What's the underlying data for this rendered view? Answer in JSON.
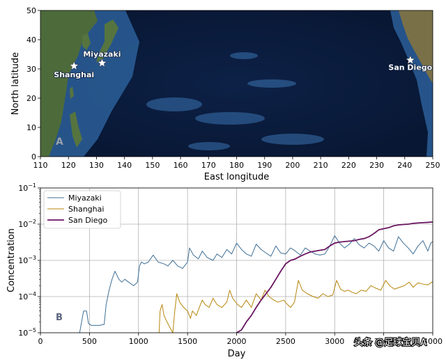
{
  "watermark": "头条 @足球宝贝A",
  "chart_data": [
    {
      "type": "map-scatter",
      "panel_label": "A",
      "xlabel": "East longitude",
      "ylabel": "North latitude",
      "xlim": [
        110,
        250
      ],
      "ylim": [
        0,
        50
      ],
      "xticks": [
        110,
        120,
        130,
        140,
        150,
        160,
        170,
        180,
        190,
        200,
        210,
        220,
        230,
        240,
        250
      ],
      "yticks": [
        0,
        10,
        20,
        30,
        40,
        50
      ],
      "points": [
        {
          "label": "Shanghai",
          "lon": 122,
          "lat": 31
        },
        {
          "label": "Miyazaki",
          "lon": 132,
          "lat": 32
        },
        {
          "label": "San Diego",
          "lon": 242,
          "lat": 33
        }
      ],
      "colors": {
        "ocean": "#0a1b3a",
        "shelf": "#2c5f99",
        "land": "#4d6b3a",
        "marker": "#ffffff"
      }
    },
    {
      "type": "line",
      "panel_label": "B",
      "xlabel": "Day",
      "ylabel": "Concentration",
      "xlim": [
        0,
        4000
      ],
      "ylim": [
        1e-05,
        0.1
      ],
      "yscale": "log",
      "xticks": [
        0,
        500,
        1000,
        1500,
        2000,
        2500,
        3000,
        3500,
        4000
      ],
      "yticks": [
        {
          "value": 1e-05,
          "label": "10",
          "exp": "−5"
        },
        {
          "value": 0.0001,
          "label": "10",
          "exp": "−4"
        },
        {
          "value": 0.001,
          "label": "10",
          "exp": "−3"
        },
        {
          "value": 0.01,
          "label": "10",
          "exp": "−2"
        },
        {
          "value": 0.1,
          "label": "10",
          "exp": "−1"
        }
      ],
      "grid": true,
      "legend_position": "top-left",
      "series": [
        {
          "name": "Miyazaki",
          "color": "#3f6f95",
          "points": [
            [
              400,
              1e-05
            ],
            [
              420,
              2e-05
            ],
            [
              440,
              4e-05
            ],
            [
              470,
              4e-05
            ],
            [
              490,
              1.8e-05
            ],
            [
              520,
              1.6e-05
            ],
            [
              600,
              1.6e-05
            ],
            [
              650,
              1.7e-05
            ],
            [
              670,
              6e-05
            ],
            [
              700,
              0.00015
            ],
            [
              730,
              0.0003
            ],
            [
              760,
              0.0005
            ],
            [
              800,
              0.0003
            ],
            [
              830,
              0.00025
            ],
            [
              860,
              0.0003
            ],
            [
              900,
              0.00025
            ],
            [
              950,
              0.0002
            ],
            [
              990,
              0.00025
            ],
            [
              1010,
              0.0007
            ],
            [
              1030,
              0.0009
            ],
            [
              1060,
              0.0008
            ],
            [
              1100,
              0.0009
            ],
            [
              1150,
              0.0014
            ],
            [
              1200,
              0.0009
            ],
            [
              1260,
              0.0008
            ],
            [
              1300,
              0.0007
            ],
            [
              1350,
              0.001
            ],
            [
              1400,
              0.0007
            ],
            [
              1450,
              0.0006
            ],
            [
              1500,
              0.0009
            ],
            [
              1520,
              0.0022
            ],
            [
              1560,
              0.0014
            ],
            [
              1610,
              0.0011
            ],
            [
              1650,
              0.0018
            ],
            [
              1700,
              0.0012
            ],
            [
              1760,
              0.001
            ],
            [
              1800,
              0.0015
            ],
            [
              1850,
              0.0012
            ],
            [
              1900,
              0.002
            ],
            [
              1950,
              0.0015
            ],
            [
              2000,
              0.003
            ],
            [
              2050,
              0.002
            ],
            [
              2100,
              0.0015
            ],
            [
              2150,
              0.0013
            ],
            [
              2200,
              0.0028
            ],
            [
              2250,
              0.002
            ],
            [
              2300,
              0.0016
            ],
            [
              2350,
              0.0013
            ],
            [
              2400,
              0.0025
            ],
            [
              2450,
              0.0016
            ],
            [
              2500,
              0.0015
            ],
            [
              2550,
              0.0022
            ],
            [
              2600,
              0.0018
            ],
            [
              2650,
              0.0014
            ],
            [
              2700,
              0.0022
            ],
            [
              2750,
              0.0018
            ],
            [
              2800,
              0.0015
            ],
            [
              2850,
              0.0014
            ],
            [
              2900,
              0.0015
            ],
            [
              2950,
              0.0025
            ],
            [
              3000,
              0.0048
            ],
            [
              3050,
              0.003
            ],
            [
              3100,
              0.0022
            ],
            [
              3150,
              0.0028
            ],
            [
              3200,
              0.004
            ],
            [
              3250,
              0.0027
            ],
            [
              3300,
              0.0022
            ],
            [
              3350,
              0.003
            ],
            [
              3400,
              0.0025
            ],
            [
              3450,
              0.0018
            ],
            [
              3500,
              0.0035
            ],
            [
              3550,
              0.0022
            ],
            [
              3600,
              0.0018
            ],
            [
              3650,
              0.0045
            ],
            [
              3700,
              0.003
            ],
            [
              3750,
              0.0022
            ],
            [
              3800,
              0.0015
            ],
            [
              3850,
              0.0025
            ],
            [
              3900,
              0.0035
            ],
            [
              3950,
              0.0018
            ],
            [
              3980,
              0.003
            ],
            [
              4000,
              0.0033
            ]
          ]
        },
        {
          "name": "Shanghai",
          "color": "#b8860b",
          "points": [
            [
              1210,
              1e-05
            ],
            [
              1220,
              4e-05
            ],
            [
              1240,
              6e-05
            ],
            [
              1260,
              3e-05
            ],
            [
              1290,
              2e-05
            ],
            [
              1320,
              1.4e-05
            ],
            [
              1350,
              1e-05
            ],
            [
              1370,
              4e-05
            ],
            [
              1390,
              0.00012
            ],
            [
              1420,
              7e-05
            ],
            [
              1460,
              5e-05
            ],
            [
              1500,
              4e-05
            ],
            [
              1530,
              2.5e-05
            ],
            [
              1550,
              4e-05
            ],
            [
              1590,
              3e-05
            ],
            [
              1620,
              5e-05
            ],
            [
              1650,
              8e-05
            ],
            [
              1680,
              6e-05
            ],
            [
              1720,
              5e-05
            ],
            [
              1760,
              9e-05
            ],
            [
              1800,
              6e-05
            ],
            [
              1850,
              5e-05
            ],
            [
              1900,
              7e-05
            ],
            [
              1930,
              0.00015
            ],
            [
              1960,
              9e-05
            ],
            [
              2010,
              6e-05
            ],
            [
              2050,
              5e-05
            ],
            [
              2100,
              8e-05
            ],
            [
              2150,
              5e-05
            ],
            [
              2200,
              0.00012
            ],
            [
              2250,
              8e-05
            ],
            [
              2290,
              0.00015
            ],
            [
              2330,
              0.0001
            ],
            [
              2380,
              8e-05
            ],
            [
              2420,
              7e-05
            ],
            [
              2480,
              8e-05
            ],
            [
              2520,
              6e-05
            ],
            [
              2550,
              5e-05
            ],
            [
              2590,
              7e-05
            ],
            [
              2630,
              0.00028
            ],
            [
              2670,
              0.00015
            ],
            [
              2720,
              0.00012
            ],
            [
              2780,
              0.0001
            ],
            [
              2830,
              9e-05
            ],
            [
              2880,
              0.00012
            ],
            [
              2930,
              0.0001
            ],
            [
              2980,
              0.00011
            ],
            [
              3020,
              0.00028
            ],
            [
              3060,
              0.00016
            ],
            [
              3100,
              0.00014
            ],
            [
              3140,
              0.00015
            ],
            [
              3180,
              0.00013
            ],
            [
              3220,
              0.00012
            ],
            [
              3270,
              0.00015
            ],
            [
              3320,
              0.00014
            ],
            [
              3370,
              0.0002
            ],
            [
              3420,
              0.00017
            ],
            [
              3470,
              0.00015
            ],
            [
              3520,
              0.00028
            ],
            [
              3560,
              0.0002
            ],
            [
              3610,
              0.00016
            ],
            [
              3660,
              0.00018
            ],
            [
              3710,
              0.0002
            ],
            [
              3760,
              0.00025
            ],
            [
              3800,
              0.00018
            ],
            [
              3850,
              0.00024
            ],
            [
              3900,
              0.00022
            ],
            [
              3950,
              0.00021
            ],
            [
              3990,
              0.00025
            ],
            [
              4000,
              0.00025
            ]
          ]
        },
        {
          "name": "San Diego",
          "color": "#6a1560",
          "points": [
            [
              2000,
              1e-05
            ],
            [
              2050,
              1.2e-05
            ],
            [
              2100,
              2e-05
            ],
            [
              2150,
              3e-05
            ],
            [
              2200,
              5e-05
            ],
            [
              2250,
              8e-05
            ],
            [
              2300,
              0.00012
            ],
            [
              2350,
              0.00018
            ],
            [
              2400,
              0.0003
            ],
            [
              2450,
              0.0005
            ],
            [
              2500,
              0.0008
            ],
            [
              2550,
              0.001
            ],
            [
              2600,
              0.0011
            ],
            [
              2650,
              0.0013
            ],
            [
              2700,
              0.0015
            ],
            [
              2750,
              0.0017
            ],
            [
              2800,
              0.0018
            ],
            [
              2850,
              0.0019
            ],
            [
              2900,
              0.002
            ],
            [
              2950,
              0.0025
            ],
            [
              3000,
              0.003
            ],
            [
              3050,
              0.0032
            ],
            [
              3100,
              0.0033
            ],
            [
              3150,
              0.0034
            ],
            [
              3200,
              0.0035
            ],
            [
              3250,
              0.0038
            ],
            [
              3300,
              0.004
            ],
            [
              3350,
              0.0045
            ],
            [
              3400,
              0.0055
            ],
            [
              3450,
              0.007
            ],
            [
              3500,
              0.0075
            ],
            [
              3550,
              0.008
            ],
            [
              3600,
              0.009
            ],
            [
              3650,
              0.0095
            ],
            [
              3700,
              0.0098
            ],
            [
              3750,
              0.01
            ],
            [
              3800,
              0.0105
            ],
            [
              3850,
              0.0108
            ],
            [
              3900,
              0.011
            ],
            [
              3950,
              0.0112
            ],
            [
              4000,
              0.0115
            ]
          ]
        }
      ]
    }
  ]
}
